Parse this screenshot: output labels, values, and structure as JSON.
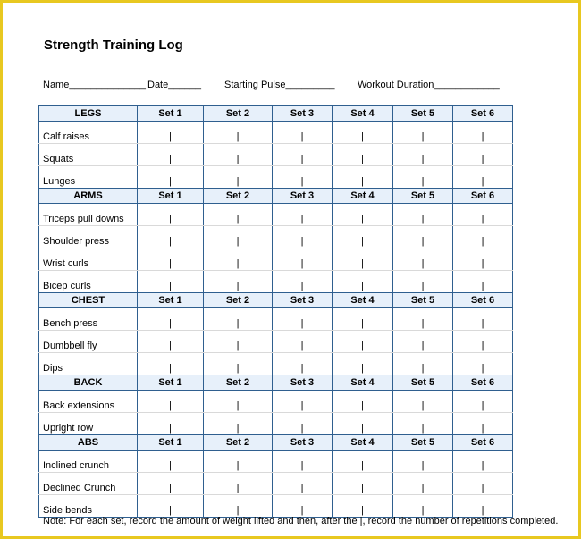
{
  "title": "Strength Training Log",
  "fields": {
    "name": "Name______________",
    "date": "Date______",
    "pulse": "Starting Pulse_________",
    "duration": "Workout Duration____________"
  },
  "divider": "|",
  "groups": [
    {
      "name": "LEGS",
      "sets": [
        "Set 1",
        "Set 2",
        "Set 3",
        "Set 4",
        "Set 5",
        "Set 6"
      ],
      "exercises": [
        "Calf raises",
        "Squats",
        "Lunges"
      ]
    },
    {
      "name": "ARMS",
      "sets": [
        "Set 1",
        "Set 2",
        "Set 3",
        "Set 4",
        "Set 5",
        "Set 6"
      ],
      "exercises": [
        "Triceps pull downs",
        "Shoulder press",
        "Wrist curls",
        "Bicep curls"
      ]
    },
    {
      "name": "CHEST",
      "sets": [
        "Set 1",
        "Set 2",
        "Set 3",
        "Set 4",
        "Set 5",
        "Set 6"
      ],
      "exercises": [
        "Bench press",
        "Dumbbell fly",
        "Dips"
      ]
    },
    {
      "name": "BACK",
      "sets": [
        "Set 1",
        "Set 2",
        "Set 3",
        "Set 4",
        "Set 5",
        "Set 6"
      ],
      "exercises": [
        "Back extensions",
        "Upright row"
      ]
    },
    {
      "name": "ABS",
      "sets": [
        "Set 1",
        "Set 2",
        "Set 3",
        "Set 4",
        "Set 5",
        "Set 6"
      ],
      "exercises": [
        "Inclined crunch",
        "Declined Crunch",
        "Side bends"
      ]
    }
  ],
  "note": "Note:  For each set, record the amount of weight lifted and then, after the |, record the number of repetitions completed."
}
